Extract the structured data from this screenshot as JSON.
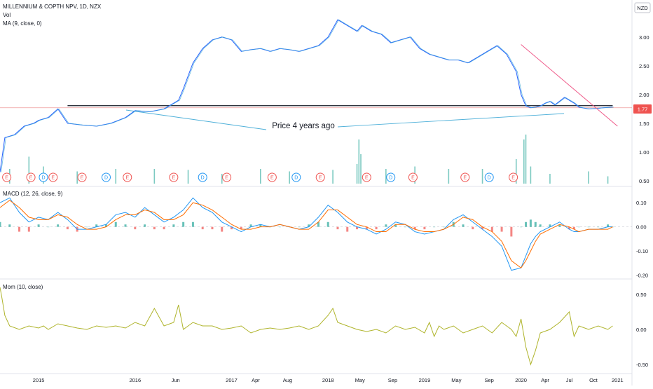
{
  "chart_data": [
    {
      "type": "line",
      "panel": "price",
      "title": "MILLENNIUM & COPTH NPV, 1D, NZX",
      "indicator_labels": [
        "Vol",
        "MA (9, close, 0)"
      ],
      "currency": "NZD",
      "ylim": [
        0.45,
        3.4
      ],
      "yticks": [
        "3.00",
        "2.50",
        "2.00",
        "1.50",
        "1.00",
        "0.50"
      ],
      "last_price": "1.77",
      "series_color": "#2962ff",
      "ma_color": "#3fa7d6",
      "x": [
        2014.6,
        2014.65,
        2014.75,
        2014.85,
        2014.95,
        2015.0,
        2015.1,
        2015.2,
        2015.3,
        2015.45,
        2015.6,
        2015.75,
        2015.9,
        2016.0,
        2016.15,
        2016.3,
        2016.4,
        2016.45,
        2016.5,
        2016.6,
        2016.7,
        2016.8,
        2016.9,
        2017.0,
        2017.1,
        2017.2,
        2017.3,
        2017.4,
        2017.5,
        2017.6,
        2017.7,
        2017.8,
        2017.9,
        2018.0,
        2018.1,
        2018.2,
        2018.3,
        2018.35,
        2018.45,
        2018.55,
        2018.65,
        2018.75,
        2018.85,
        2018.95,
        2019.05,
        2019.15,
        2019.25,
        2019.35,
        2019.45,
        2019.55,
        2019.65,
        2019.75,
        2019.85,
        2019.95,
        2020.0,
        2020.05,
        2020.1,
        2020.15,
        2020.2,
        2020.25,
        2020.3,
        2020.35,
        2020.45,
        2020.55,
        2020.6,
        2020.7,
        2020.8,
        2020.85,
        2020.95
      ],
      "y": [
        0.65,
        1.25,
        1.3,
        1.45,
        1.5,
        1.55,
        1.6,
        1.75,
        1.5,
        1.47,
        1.45,
        1.5,
        1.6,
        1.72,
        1.7,
        1.75,
        1.85,
        1.9,
        2.1,
        2.55,
        2.8,
        2.95,
        3.0,
        2.95,
        2.75,
        2.78,
        2.8,
        2.75,
        2.8,
        2.78,
        2.75,
        2.8,
        2.85,
        3.0,
        3.3,
        3.2,
        3.1,
        3.2,
        3.1,
        3.05,
        2.9,
        2.95,
        3.0,
        2.8,
        2.7,
        2.65,
        2.6,
        2.6,
        2.55,
        2.65,
        2.75,
        2.85,
        2.7,
        2.4,
        2.0,
        1.8,
        1.77,
        1.78,
        1.8,
        1.85,
        1.88,
        1.82,
        1.95,
        1.85,
        1.78,
        1.75,
        1.76,
        1.77,
        1.78
      ]
    },
    {
      "type": "bar",
      "panel": "volume",
      "title": "Vol",
      "color": "#26a69a",
      "bars": [
        [
          2014.7,
          0.3
        ],
        [
          2014.9,
          0.55
        ],
        [
          2015.05,
          0.35
        ],
        [
          2015.4,
          0.25
        ],
        [
          2015.8,
          0.3
        ],
        [
          2016.2,
          0.3
        ],
        [
          2016.55,
          0.28
        ],
        [
          2016.9,
          0.2
        ],
        [
          2017.3,
          0.3
        ],
        [
          2017.6,
          0.25
        ],
        [
          2018.05,
          0.28
        ],
        [
          2018.3,
          0.4
        ],
        [
          2018.32,
          0.9
        ],
        [
          2018.34,
          0.6
        ],
        [
          2018.6,
          0.3
        ],
        [
          2018.9,
          0.35
        ],
        [
          2019.25,
          0.3
        ],
        [
          2019.6,
          0.3
        ],
        [
          2019.95,
          0.5
        ],
        [
          2020.03,
          0.9
        ],
        [
          2020.05,
          1.0
        ],
        [
          2020.1,
          0.35
        ],
        [
          2020.3,
          0.2
        ],
        [
          2020.7,
          0.25
        ],
        [
          2020.9,
          0.15
        ]
      ]
    },
    {
      "type": "scatter",
      "panel": "events",
      "markers": [
        {
          "x": 2014.67,
          "label": "E",
          "kind": "earnings"
        },
        {
          "x": 2014.92,
          "label": "E",
          "kind": "earnings"
        },
        {
          "x": 2015.05,
          "label": "D",
          "kind": "dividend"
        },
        {
          "x": 2015.15,
          "label": "E",
          "kind": "earnings"
        },
        {
          "x": 2015.45,
          "label": "E",
          "kind": "earnings"
        },
        {
          "x": 2015.7,
          "label": "D",
          "kind": "dividend"
        },
        {
          "x": 2015.92,
          "label": "E",
          "kind": "earnings"
        },
        {
          "x": 2016.4,
          "label": "E",
          "kind": "earnings"
        },
        {
          "x": 2016.7,
          "label": "D",
          "kind": "dividend"
        },
        {
          "x": 2016.95,
          "label": "E",
          "kind": "earnings"
        },
        {
          "x": 2017.42,
          "label": "E",
          "kind": "earnings"
        },
        {
          "x": 2017.67,
          "label": "D",
          "kind": "dividend"
        },
        {
          "x": 2017.92,
          "label": "E",
          "kind": "earnings"
        },
        {
          "x": 2018.4,
          "label": "E",
          "kind": "earnings"
        },
        {
          "x": 2018.65,
          "label": "D",
          "kind": "dividend"
        },
        {
          "x": 2018.88,
          "label": "E",
          "kind": "earnings"
        },
        {
          "x": 2019.42,
          "label": "E",
          "kind": "earnings"
        },
        {
          "x": 2019.67,
          "label": "D",
          "kind": "dividend"
        },
        {
          "x": 2019.92,
          "label": "E",
          "kind": "earnings"
        }
      ]
    },
    {
      "type": "line",
      "panel": "macd",
      "title": "MACD (12, 26, close, 9)",
      "ylim": [
        -0.2,
        0.15
      ],
      "yticks": [
        "0.10",
        "0.00",
        "-0.10",
        "-0.20"
      ],
      "macd_color": "#2196f3",
      "signal_color": "#ff6d00",
      "hist_pos_color": "#26a69a",
      "hist_neg_color": "#ef5350",
      "x": [
        2014.6,
        2014.7,
        2014.8,
        2014.9,
        2015.0,
        2015.1,
        2015.2,
        2015.3,
        2015.4,
        2015.5,
        2015.6,
        2015.7,
        2015.8,
        2015.9,
        2016.0,
        2016.1,
        2016.2,
        2016.3,
        2016.4,
        2016.5,
        2016.6,
        2016.7,
        2016.8,
        2016.9,
        2017.0,
        2017.1,
        2017.2,
        2017.3,
        2017.4,
        2017.5,
        2017.6,
        2017.7,
        2017.8,
        2017.9,
        2018.0,
        2018.1,
        2018.2,
        2018.3,
        2018.4,
        2018.5,
        2018.6,
        2018.7,
        2018.8,
        2018.9,
        2019.0,
        2019.1,
        2019.2,
        2019.3,
        2019.4,
        2019.5,
        2019.6,
        2019.7,
        2019.8,
        2019.9,
        2020.0,
        2020.05,
        2020.1,
        2020.15,
        2020.2,
        2020.3,
        2020.4,
        2020.5,
        2020.55,
        2020.6,
        2020.7,
        2020.8,
        2020.9,
        2020.95
      ],
      "macd": [
        0.1,
        0.12,
        0.06,
        0.02,
        0.04,
        0.03,
        0.06,
        0.03,
        -0.01,
        -0.01,
        0.0,
        0.01,
        0.05,
        0.06,
        0.04,
        0.08,
        0.05,
        0.02,
        0.04,
        0.07,
        0.12,
        0.08,
        0.06,
        0.02,
        0.0,
        -0.02,
        0.0,
        0.01,
        0.0,
        0.01,
        0.0,
        -0.01,
        0.0,
        0.04,
        0.09,
        0.06,
        0.02,
        0.0,
        -0.01,
        -0.03,
        -0.01,
        0.02,
        0.01,
        -0.02,
        -0.03,
        -0.02,
        -0.01,
        0.03,
        0.05,
        0.02,
        -0.01,
        -0.04,
        -0.08,
        -0.18,
        -0.17,
        -0.12,
        -0.07,
        -0.04,
        -0.02,
        0.0,
        0.02,
        -0.01,
        -0.02,
        -0.02,
        -0.01,
        -0.01,
        0.0,
        0.0
      ],
      "signal": [
        0.08,
        0.11,
        0.08,
        0.04,
        0.03,
        0.03,
        0.05,
        0.04,
        0.01,
        -0.01,
        -0.01,
        0.0,
        0.03,
        0.05,
        0.05,
        0.07,
        0.06,
        0.03,
        0.03,
        0.05,
        0.1,
        0.09,
        0.07,
        0.04,
        0.01,
        -0.01,
        -0.01,
        0.0,
        0.0,
        0.01,
        0.0,
        -0.01,
        -0.01,
        0.02,
        0.07,
        0.07,
        0.04,
        0.01,
        0.0,
        -0.02,
        -0.02,
        0.01,
        0.01,
        -0.01,
        -0.02,
        -0.02,
        -0.01,
        0.01,
        0.04,
        0.03,
        0.0,
        -0.02,
        -0.06,
        -0.14,
        -0.17,
        -0.14,
        -0.1,
        -0.06,
        -0.03,
        -0.01,
        0.01,
        0.0,
        -0.01,
        -0.02,
        -0.01,
        -0.01,
        -0.01,
        0.0
      ]
    },
    {
      "type": "line",
      "panel": "momentum",
      "title": "Mom (10, close)",
      "ylim": [
        -0.6,
        0.65
      ],
      "yticks": [
        "0.50",
        "0.00",
        "-0.50"
      ],
      "color": "#afb42b",
      "x": [
        2014.6,
        2014.62,
        2014.65,
        2014.7,
        2014.8,
        2014.9,
        2015.0,
        2015.05,
        2015.1,
        2015.2,
        2015.3,
        2015.4,
        2015.5,
        2015.6,
        2015.7,
        2015.8,
        2015.9,
        2016.0,
        2016.1,
        2016.2,
        2016.3,
        2016.4,
        2016.45,
        2016.5,
        2016.6,
        2016.7,
        2016.8,
        2016.9,
        2017.0,
        2017.1,
        2017.2,
        2017.3,
        2017.4,
        2017.5,
        2017.6,
        2017.7,
        2017.8,
        2017.9,
        2018.0,
        2018.05,
        2018.1,
        2018.2,
        2018.3,
        2018.4,
        2018.5,
        2018.6,
        2018.7,
        2018.8,
        2018.9,
        2019.0,
        2019.05,
        2019.1,
        2019.15,
        2019.2,
        2019.3,
        2019.4,
        2019.5,
        2019.6,
        2019.7,
        2019.8,
        2019.9,
        2019.95,
        2020.0,
        2020.05,
        2020.1,
        2020.15,
        2020.2,
        2020.3,
        2020.4,
        2020.5,
        2020.55,
        2020.6,
        2020.7,
        2020.8,
        2020.9,
        2020.95
      ],
      "values": [
        0.6,
        0.45,
        0.2,
        0.05,
        0.0,
        0.05,
        0.02,
        0.05,
        0.0,
        0.08,
        0.05,
        0.02,
        0.0,
        0.05,
        0.03,
        0.05,
        0.02,
        0.1,
        0.05,
        0.3,
        0.05,
        0.1,
        0.35,
        0.0,
        0.1,
        0.05,
        0.05,
        0.0,
        0.02,
        0.05,
        -0.05,
        0.0,
        0.02,
        0.0,
        0.02,
        0.05,
        0.0,
        0.05,
        0.2,
        0.3,
        0.1,
        0.05,
        0.0,
        -0.03,
        0.0,
        -0.05,
        0.05,
        0.0,
        0.03,
        -0.05,
        0.1,
        -0.1,
        0.05,
        0.0,
        0.05,
        -0.05,
        0.0,
        0.05,
        -0.05,
        0.1,
        0.0,
        -0.1,
        0.15,
        -0.25,
        -0.5,
        -0.3,
        -0.05,
        0.0,
        0.1,
        0.25,
        -0.1,
        0.05,
        0.0,
        0.05,
        0.0,
        0.05
      ]
    }
  ],
  "time_axis": {
    "range": [
      2014.6,
      2021.15
    ],
    "ticks": [
      {
        "x": 2014.58,
        "label": "Aug"
      },
      {
        "x": 2015.0,
        "label": "2015"
      },
      {
        "x": 2016.0,
        "label": "2016"
      },
      {
        "x": 2016.42,
        "label": "Jun"
      },
      {
        "x": 2017.0,
        "label": "2017"
      },
      {
        "x": 2017.25,
        "label": "Apr"
      },
      {
        "x": 2017.58,
        "label": "Aug"
      },
      {
        "x": 2018.0,
        "label": "2018"
      },
      {
        "x": 2018.33,
        "label": "May"
      },
      {
        "x": 2018.67,
        "label": "Sep"
      },
      {
        "x": 2019.0,
        "label": "2019"
      },
      {
        "x": 2019.33,
        "label": "May"
      },
      {
        "x": 2019.67,
        "label": "Sep"
      },
      {
        "x": 2020.0,
        "label": "2020"
      },
      {
        "x": 2020.25,
        "label": "Apr"
      },
      {
        "x": 2020.5,
        "label": "Jul"
      },
      {
        "x": 2020.75,
        "label": "Oct"
      },
      {
        "x": 2021.0,
        "label": "2021"
      }
    ]
  },
  "drawings": {
    "annotation": "Price 4 years ago",
    "horizontal_level": 1.77,
    "trendline": {
      "x1": 2020.0,
      "y1": 2.87,
      "x2": 2021.0,
      "y2": 1.45,
      "color": "#ef5b8a"
    }
  }
}
